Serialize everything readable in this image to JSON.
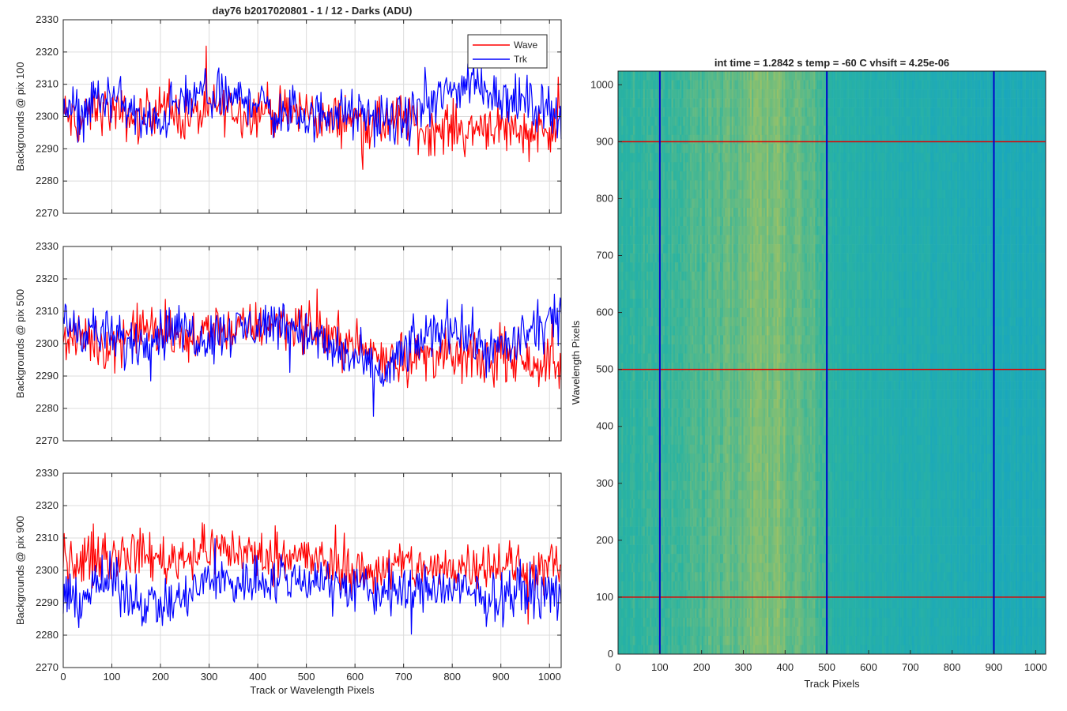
{
  "figure": {
    "left_title": "day76 b2017020801 - 1 / 12 - Darks (ADU)",
    "right_title": "int time = 1.2842 s    temp = -60 C    vhsift = 4.25e-06",
    "shared_xlabel": "Track or Wavelength Pixels"
  },
  "legend": {
    "entries": [
      {
        "label": "Wave",
        "color": "#ff0000"
      },
      {
        "label": "Trk",
        "color": "#0000ff"
      }
    ]
  },
  "chart_data": [
    {
      "type": "line",
      "ylabel": "Backgrounds @ pix 100",
      "xlim": [
        0,
        1024
      ],
      "ylim": [
        2270,
        2330
      ],
      "xticks": [
        "0",
        "100",
        "200",
        "300",
        "400",
        "500",
        "600",
        "700",
        "800",
        "900",
        "1000"
      ],
      "yticks": [
        "2270",
        "2280",
        "2290",
        "2300",
        "2310",
        "2320",
        "2330"
      ],
      "grid": true,
      "legend_position": "top-right",
      "series": [
        {
          "name": "Wave",
          "color": "#ff0000",
          "x_step": 32,
          "values": [
            2301,
            2297,
            2303,
            2302,
            2300,
            2299,
            2304,
            2301,
            2300,
            2301,
            2303,
            2302,
            2301,
            2303,
            2300,
            2302,
            2301,
            2298,
            2300,
            2299,
            2297,
            2298,
            2300,
            2296,
            2296,
            2297,
            2295,
            2298,
            2297,
            2296,
            2295,
            2297,
            2296
          ]
        },
        {
          "name": "Trk",
          "color": "#0000ff",
          "x_step": 32,
          "values": [
            2303,
            2301,
            2305,
            2306,
            2304,
            2298,
            2297,
            2303,
            2305,
            2307,
            2306,
            2305,
            2306,
            2303,
            2300,
            2301,
            2299,
            2302,
            2301,
            2300,
            2300,
            2298,
            2299,
            2302,
            2305,
            2308,
            2311,
            2309,
            2307,
            2305,
            2304,
            2303,
            2301
          ]
        }
      ]
    },
    {
      "type": "line",
      "ylabel": "Backgrounds @ pix 500",
      "xlim": [
        0,
        1024
      ],
      "ylim": [
        2270,
        2330
      ],
      "xticks": [
        "0",
        "100",
        "200",
        "300",
        "400",
        "500",
        "600",
        "700",
        "800",
        "900",
        "1000"
      ],
      "yticks": [
        "2270",
        "2280",
        "2290",
        "2300",
        "2310",
        "2320",
        "2330"
      ],
      "grid": true,
      "series": [
        {
          "name": "Wave",
          "color": "#ff0000",
          "x_step": 32,
          "values": [
            2300,
            2302,
            2301,
            2299,
            2303,
            2305,
            2304,
            2302,
            2301,
            2303,
            2306,
            2304,
            2305,
            2306,
            2307,
            2306,
            2304,
            2302,
            2301,
            2299,
            2297,
            2296,
            2295,
            2296,
            2297,
            2295,
            2296,
            2294,
            2296,
            2297,
            2295,
            2294,
            2293
          ]
        },
        {
          "name": "Trk",
          "color": "#0000ff",
          "x_step": 32,
          "values": [
            2306,
            2305,
            2304,
            2302,
            2300,
            2301,
            2303,
            2305,
            2304,
            2302,
            2303,
            2304,
            2305,
            2306,
            2307,
            2305,
            2302,
            2299,
            2297,
            2295,
            2290,
            2292,
            2298,
            2301,
            2304,
            2306,
            2302,
            2299,
            2298,
            2300,
            2303,
            2306,
            2307
          ]
        }
      ]
    },
    {
      "type": "line",
      "ylabel": "Backgrounds @ pix 900",
      "xlabel": "Track or Wavelength Pixels",
      "xlim": [
        0,
        1024
      ],
      "ylim": [
        2270,
        2330
      ],
      "xticks": [
        "0",
        "100",
        "200",
        "300",
        "400",
        "500",
        "600",
        "700",
        "800",
        "900",
        "1000"
      ],
      "yticks": [
        "2270",
        "2280",
        "2290",
        "2300",
        "2310",
        "2320",
        "2330"
      ],
      "grid": true,
      "series": [
        {
          "name": "Wave",
          "color": "#ff0000",
          "x_step": 32,
          "values": [
            2304,
            2302,
            2305,
            2304,
            2306,
            2305,
            2304,
            2303,
            2305,
            2306,
            2307,
            2306,
            2305,
            2304,
            2306,
            2305,
            2303,
            2302,
            2301,
            2299,
            2300,
            2301,
            2302,
            2301,
            2300,
            2301,
            2302,
            2303,
            2302,
            2301,
            2300,
            2301,
            2302
          ]
        },
        {
          "name": "Trk",
          "color": "#0000ff",
          "x_step": 32,
          "values": [
            2290,
            2291,
            2295,
            2297,
            2293,
            2291,
            2290,
            2289,
            2292,
            2296,
            2297,
            2296,
            2297,
            2298,
            2296,
            2297,
            2298,
            2297,
            2295,
            2294,
            2293,
            2294,
            2293,
            2294,
            2295,
            2294,
            2293,
            2291,
            2292,
            2293,
            2294,
            2293,
            2292
          ]
        }
      ]
    },
    {
      "type": "heatmap",
      "title": "int time = 1.2842 s    temp = -60 C    vhsift = 4.25e-06",
      "xlabel": "Track Pixels",
      "ylabel": "Wavelength Pixels",
      "xlim": [
        0,
        1024
      ],
      "ylim": [
        0,
        1024
      ],
      "xticks": [
        "0",
        "100",
        "200",
        "300",
        "400",
        "500",
        "600",
        "700",
        "800",
        "900",
        "1000"
      ],
      "yticks": [
        "0",
        "100",
        "200",
        "300",
        "400",
        "500",
        "600",
        "700",
        "800",
        "900",
        "1000"
      ],
      "colormap": [
        "#0f9fcf",
        "#2ab3a1",
        "#c8c84f"
      ],
      "column_intensity": [
        0.48,
        0.5,
        0.52,
        0.54,
        0.56,
        0.58,
        0.6,
        0.63,
        0.66,
        0.7,
        0.74,
        0.77,
        0.75,
        0.7,
        0.66,
        0.62,
        0.46,
        0.42,
        0.4,
        0.38,
        0.37,
        0.36,
        0.35,
        0.34,
        0.33,
        0.33,
        0.32,
        0.31,
        0.3,
        0.29,
        0.28,
        0.27
      ],
      "markers": {
        "vertical_x": [
          100,
          500,
          900
        ],
        "vertical_color": "#0000cd",
        "horizontal_y": [
          100,
          500,
          900
        ],
        "horizontal_color": "#e00000"
      }
    }
  ]
}
